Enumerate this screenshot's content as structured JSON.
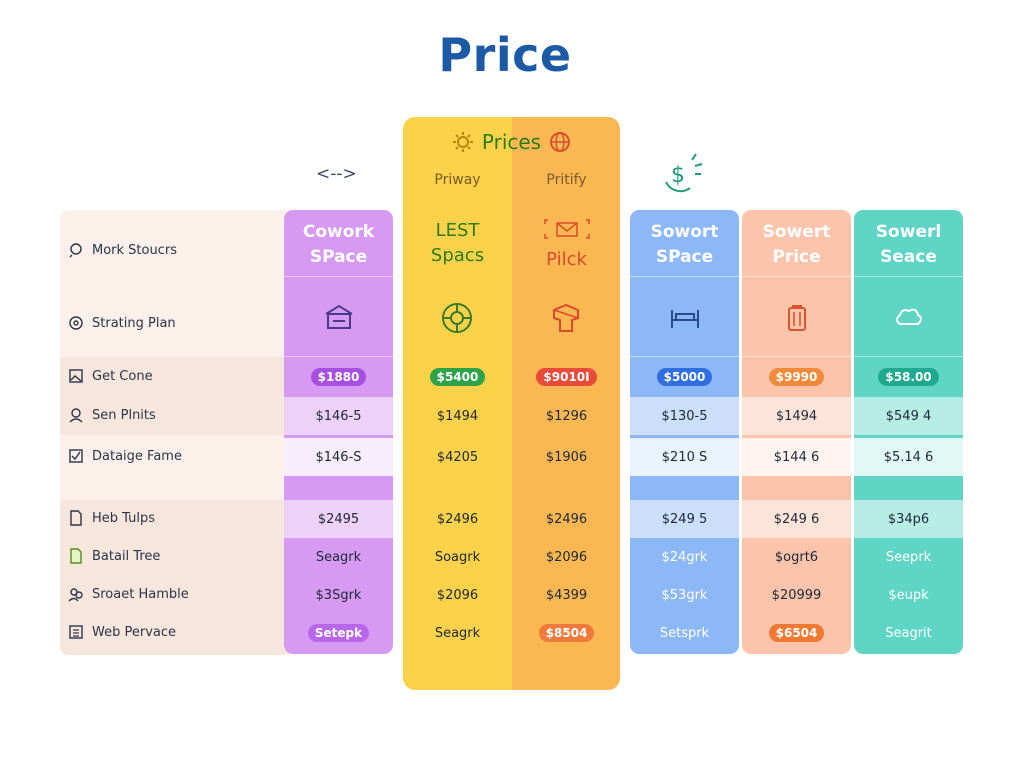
{
  "page": {
    "title": "Price"
  },
  "nav": {
    "arrows": "<-->"
  },
  "featured": {
    "header": "Prices",
    "left": {
      "sublabel": "Priway",
      "title_line1": "LEST",
      "title_line2": "Spacs",
      "badge": "$5400",
      "cells": [
        "$1494",
        "$4205",
        "$2496",
        "Soagrk",
        "$2096",
        "Seagrk"
      ],
      "colors": {
        "bg": "#fbd24a",
        "title": "#2f7a1b",
        "badge": "#2fa34a"
      }
    },
    "right": {
      "sublabel": "Pritify",
      "title_line1": "Pilck",
      "badge": "$9010I",
      "cells": [
        "$1296",
        "$1906",
        "$2496",
        "$2096",
        "$4399",
        "$8504"
      ],
      "last_is_pill": true,
      "colors": {
        "bg": "#fbb852",
        "title": "#d94a2a",
        "badge": "#e84b3a",
        "last_pill": "#ef7a3c"
      }
    }
  },
  "features": [
    {
      "icon": "question-icon",
      "label": "Mork Stoucrs"
    },
    {
      "icon": "settings-icon",
      "label": "Strating Plan"
    },
    {
      "icon": "image-icon",
      "label": "Get Cone"
    },
    {
      "icon": "user-icon",
      "label": "Sen Plnits"
    },
    {
      "icon": "check-icon",
      "label": "Dataige Fame"
    },
    {
      "icon": "file-icon",
      "label": "Heb Tulps"
    },
    {
      "icon": "file-green-icon",
      "label": "Batail Tree"
    },
    {
      "icon": "group-icon",
      "label": "Sroaet Hamble"
    },
    {
      "icon": "doc-list-icon",
      "label": "Web Pervace"
    }
  ],
  "plans": [
    {
      "id": "cowork",
      "title_line1": "Cowork",
      "title_line2": "SPace",
      "badge": "$1880",
      "cells": [
        "$146-5",
        "$146-S",
        "$2495",
        "Seagrk",
        "$3Sgrk",
        "Setepk"
      ],
      "last_is_pill": true,
      "colors": {
        "bg": "#d79af2",
        "badge": "#a64fe0",
        "last_pill": "#b866ea",
        "title": "#ffffff"
      }
    },
    {
      "id": "sowort-space",
      "title_line1": "Sowort",
      "title_line2": "SPace",
      "badge": "$5000",
      "cells": [
        "$130-5",
        "$210 S",
        "$249 5",
        "$24grk",
        "$53grk",
        "Setsprk"
      ],
      "last_is_pill": false,
      "colors": {
        "bg": "#8db8f7",
        "badge": "#2f6fe0",
        "title": "#ffffff"
      }
    },
    {
      "id": "sowert-price",
      "title_line1": "Sowert",
      "title_line2": "Price",
      "badge": "$9990",
      "cells": [
        "$1494",
        "$144 6",
        "$249 6",
        "$ogrt6",
        "$20999",
        "$6504"
      ],
      "last_is_pill": true,
      "colors": {
        "bg": "#fbc4ab",
        "badge": "#f28a3a",
        "last_pill": "#f07a34",
        "title": "#ffffff"
      }
    },
    {
      "id": "sowerl-seace",
      "title_line1": "Sowerl",
      "title_line2": "Seace",
      "badge": "$58.00",
      "cells": [
        "$549 4",
        "$5.14 6",
        "$34p6",
        "Seeprk",
        "$eupk",
        "Seagrit"
      ],
      "last_is_pill": false,
      "colors": {
        "bg": "#5fd5c6",
        "badge": "#1fa98f",
        "title": "#ffffff"
      }
    }
  ]
}
